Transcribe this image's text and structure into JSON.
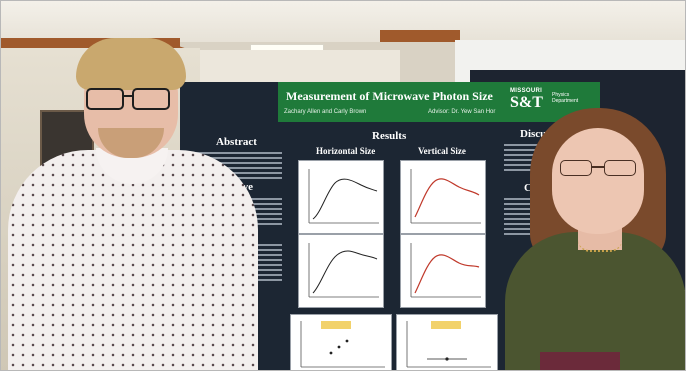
{
  "poster": {
    "title": "Measurement of Microwave Photon Size",
    "authors": "Zachary Allen and Carly Brown",
    "advisor": "Advisor: Dr. Yew San Hor",
    "logo_missouri": "MISSOURI",
    "logo_st": "S&T",
    "logo_department": "Physics Department",
    "sections": {
      "abstract": "Abstract",
      "motive": "Motive",
      "methods": "ods",
      "results": "Results",
      "discussion": "Discussi",
      "conclusion": "Conc"
    },
    "results_headings": {
      "horizontal": "Horizontal Size",
      "vertical": "Vertical Size"
    }
  },
  "colors": {
    "poster_background": "#1c2633",
    "poster_header": "#1f7a3a",
    "plot_series": "#c0392b",
    "plot_points": "#222222"
  }
}
